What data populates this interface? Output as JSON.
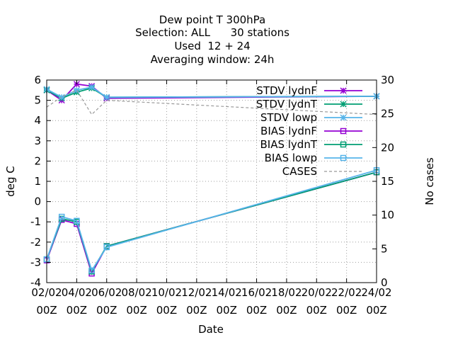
{
  "chart_data": {
    "type": "line",
    "title_lines": [
      "Dew point T 300hPa",
      "Selection: ALL      30 stations",
      "Used  12 + 24",
      "Averaging window: 24h"
    ],
    "xlabel": "Date",
    "ylabel": "deg C",
    "y2label": "No cases",
    "x_range": [
      2,
      24
    ],
    "ylim": [
      -4,
      6
    ],
    "y2lim": [
      0,
      30
    ],
    "grid": true,
    "legend_position": "top-right",
    "x_ticks": [
      {
        "x": 2,
        "line1": "02/02",
        "line2": "00Z"
      },
      {
        "x": 4,
        "line1": "04/02",
        "line2": "00Z"
      },
      {
        "x": 6,
        "line1": "06/02",
        "line2": "00Z"
      },
      {
        "x": 8,
        "line1": "08/02",
        "line2": "00Z"
      },
      {
        "x": 10,
        "line1": "10/02",
        "line2": "00Z"
      },
      {
        "x": 12,
        "line1": "12/02",
        "line2": "00Z"
      },
      {
        "x": 14,
        "line1": "14/02",
        "line2": "00Z"
      },
      {
        "x": 16,
        "line1": "16/02",
        "line2": "00Z"
      },
      {
        "x": 18,
        "line1": "18/02",
        "line2": "00Z"
      },
      {
        "x": 20,
        "line1": "20/02",
        "line2": "00Z"
      },
      {
        "x": 22,
        "line1": "22/02",
        "line2": "00Z"
      },
      {
        "x": 24,
        "line1": "24/02",
        "line2": "00Z"
      }
    ],
    "y_ticks": [
      -4,
      -3,
      -2,
      -1,
      0,
      1,
      2,
      3,
      4,
      5,
      6
    ],
    "y2_ticks": [
      0,
      5,
      10,
      15,
      20,
      25,
      30
    ],
    "series": [
      {
        "name": "STDV lydnF",
        "axis": "y",
        "color": "#9400d3",
        "marker": "star",
        "points": [
          [
            2,
            5.5
          ],
          [
            3,
            5.0
          ],
          [
            4,
            5.8
          ],
          [
            5,
            5.7
          ],
          [
            6,
            5.1
          ],
          [
            24,
            5.2
          ]
        ]
      },
      {
        "name": "STDV lydnT",
        "axis": "y",
        "color": "#009e73",
        "marker": "star",
        "points": [
          [
            2,
            5.5
          ],
          [
            3,
            5.1
          ],
          [
            4,
            5.4
          ],
          [
            5,
            5.6
          ],
          [
            6,
            5.15
          ],
          [
            24,
            5.2
          ]
        ]
      },
      {
        "name": "STDV lowp",
        "axis": "y",
        "color": "#56b4e9",
        "marker": "star",
        "points": [
          [
            2,
            5.55
          ],
          [
            3,
            5.15
          ],
          [
            4,
            5.5
          ],
          [
            5,
            5.65
          ],
          [
            6,
            5.15
          ],
          [
            24,
            5.2
          ]
        ]
      },
      {
        "name": "BIAS lydnF",
        "axis": "y",
        "color": "#9400d3",
        "marker": "square",
        "points": [
          [
            2,
            -2.9
          ],
          [
            3,
            -0.9
          ],
          [
            4,
            -1.1
          ],
          [
            5,
            -3.55
          ],
          [
            6,
            -2.2
          ],
          [
            24,
            1.45
          ]
        ]
      },
      {
        "name": "BIAS lydnT",
        "axis": "y",
        "color": "#009e73",
        "marker": "square",
        "points": [
          [
            2,
            -2.85
          ],
          [
            3,
            -0.85
          ],
          [
            4,
            -1.0
          ],
          [
            5,
            -3.45
          ],
          [
            6,
            -2.2
          ],
          [
            24,
            1.45
          ]
        ]
      },
      {
        "name": "BIAS lowp",
        "axis": "y",
        "color": "#56b4e9",
        "marker": "square",
        "points": [
          [
            2,
            -2.85
          ],
          [
            3,
            -0.75
          ],
          [
            4,
            -0.95
          ],
          [
            5,
            -3.4
          ],
          [
            6,
            -2.25
          ],
          [
            24,
            1.55
          ]
        ]
      },
      {
        "name": "CASES",
        "axis": "y2",
        "color": "#999999",
        "marker": "none",
        "dashed": true,
        "points": [
          [
            2,
            26.0
          ],
          [
            3,
            27.5
          ],
          [
            4,
            28.5
          ],
          [
            5,
            24.9
          ],
          [
            6,
            27.0
          ],
          [
            24,
            24.9
          ]
        ]
      }
    ]
  }
}
